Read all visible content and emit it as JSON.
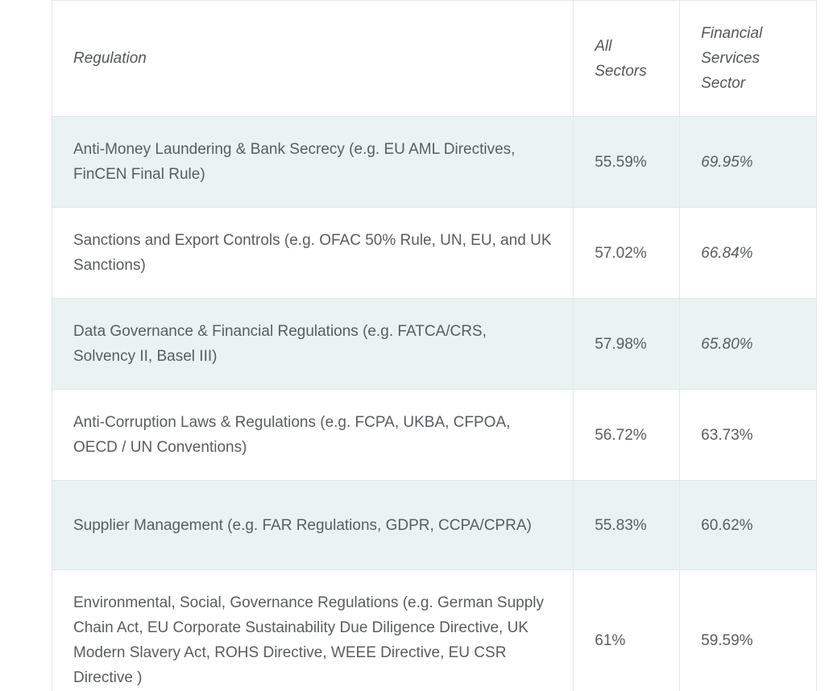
{
  "chart_data": {
    "type": "table",
    "title": "",
    "columns": [
      "Regulation",
      "All Sectors",
      "Financial Services Sector"
    ],
    "rows": [
      [
        "Anti-Money Laundering & Bank Secrecy (e.g. EU AML Directives, FinCEN Final Rule)",
        "55.59%",
        "69.95%"
      ],
      [
        "Sanctions and Export Controls (e.g. OFAC 50% Rule, UN, EU, and UK Sanctions)",
        "57.02%",
        "66.84%"
      ],
      [
        "Data Governance & Financial Regulations (e.g. FATCA/CRS, Solvency II, Basel III)",
        "57.98%",
        "65.80%"
      ],
      [
        "Anti-Corruption Laws & Regulations (e.g. FCPA, UKBA, CFPOA, OECD / UN Conventions)",
        "56.72%",
        "63.73%"
      ],
      [
        "Supplier Management (e.g. FAR Regulations, GDPR, CCPA/CPRA)",
        "55.83%",
        "60.62%"
      ],
      [
        "Environmental, Social, Governance Regulations (e.g. German Supply Chain Act, EU Corporate Sustainability Due Diligence Directive, UK Modern Slavery Act, ROHS Directive, WEEE Directive, EU CSR Directive )",
        "61%",
        "59.59%"
      ]
    ],
    "layout": {
      "row_alt_color": "#eaf3f2",
      "border_color": "#e2e7e7",
      "text_color": "#595d5f",
      "grid": true
    }
  }
}
